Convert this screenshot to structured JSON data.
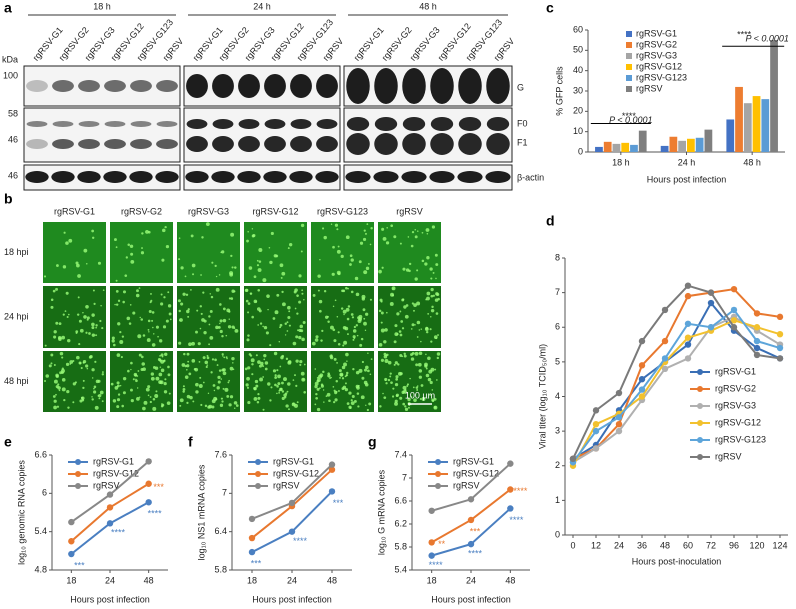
{
  "panel_labels": [
    "a",
    "b",
    "c",
    "d",
    "e",
    "f",
    "g"
  ],
  "blot": {
    "timepoints": [
      "18 h",
      "24 h",
      "48 h"
    ],
    "lanes": [
      "rgRSV-G1",
      "rgRSV-G2",
      "rgRSV-G3",
      "rgRSV-G12",
      "rgRSV-G123",
      "rgRSV"
    ],
    "unit": "kDa",
    "markers": [
      "100",
      "58",
      "46",
      "46"
    ],
    "bands": [
      "G",
      "F0",
      "F1",
      "β-actin"
    ]
  },
  "microscopy": {
    "columns": [
      "rgRSV-G1",
      "rgRSV-G2",
      "rgRSV-G3",
      "rgRSV-G12",
      "rgRSV-G123",
      "rgRSV"
    ],
    "rows": [
      "18 hpi",
      "24 hpi",
      "48 hpi"
    ],
    "scale_bar": "100 µm"
  },
  "chart_data": [
    {
      "type": "bar",
      "categories": [
        "18 h",
        "24 h",
        "48 h"
      ],
      "ylabel": "% GFP cells",
      "xlabel": "Hours post infection",
      "ylim": [
        0,
        60
      ],
      "yticks": [
        0,
        10,
        20,
        30,
        40,
        50,
        60
      ],
      "annotations": [
        "****",
        "P < 0.0001",
        "****",
        "P < 0.0001"
      ],
      "series": [
        {
          "name": "rgRSV-G1",
          "color": "#4472c4",
          "values": [
            2.5,
            3,
            16
          ]
        },
        {
          "name": "rgRSV-G2",
          "color": "#ed7d31",
          "values": [
            5,
            7.5,
            32
          ]
        },
        {
          "name": "rgRSV-G3",
          "color": "#a5a5a5",
          "values": [
            4,
            5.5,
            24
          ]
        },
        {
          "name": "rgRSV-G12",
          "color": "#ffc000",
          "values": [
            4.5,
            6.5,
            27.5
          ]
        },
        {
          "name": "rgRSV-G123",
          "color": "#5b9bd5",
          "values": [
            3.5,
            7,
            26
          ]
        },
        {
          "name": "rgRSV",
          "color": "#7f7f7f",
          "values": [
            10.5,
            11,
            55
          ]
        }
      ]
    },
    {
      "type": "line",
      "categories": [
        "0",
        "12",
        "24",
        "36",
        "48",
        "60",
        "72",
        "96",
        "120",
        "124"
      ],
      "ylabel": "Viral titer (log₁₀ TCID₅₀/ml)",
      "xlabel": "Hours post-inoculation",
      "ylim": [
        0,
        8
      ],
      "yticks": [
        0,
        1,
        2,
        3,
        4,
        5,
        6,
        7,
        8
      ],
      "legend": "lower right",
      "series": [
        {
          "name": "rgRSV-G1",
          "color": "#3a6fb5",
          "values": [
            2.2,
            2.6,
            3.6,
            4.5,
            5.0,
            5.5,
            6.7,
            5.9,
            5.4,
            5.1
          ]
        },
        {
          "name": "rgRSV-G2",
          "color": "#e8782f",
          "values": [
            2.2,
            2.5,
            3.2,
            4.9,
            5.6,
            6.9,
            7.0,
            7.1,
            6.4,
            6.3
          ]
        },
        {
          "name": "rgRSV-G3",
          "color": "#b0b0b0",
          "values": [
            2.1,
            2.5,
            3.0,
            3.9,
            4.8,
            5.1,
            6.0,
            6.3,
            5.9,
            5.5
          ]
        },
        {
          "name": "rgRSV-G12",
          "color": "#f2c12e",
          "values": [
            2.0,
            3.2,
            3.5,
            4.0,
            5.0,
            5.7,
            5.9,
            6.2,
            6.0,
            5.8
          ]
        },
        {
          "name": "rgRSV-G123",
          "color": "#5da5da",
          "values": [
            2.1,
            3.0,
            3.4,
            4.2,
            5.1,
            6.1,
            6.0,
            6.5,
            5.6,
            5.4
          ]
        },
        {
          "name": "rgRSV",
          "color": "#7a7a7a",
          "values": [
            2.2,
            3.6,
            4.1,
            5.6,
            6.5,
            7.2,
            7.0,
            6.0,
            5.2,
            5.1
          ]
        }
      ]
    },
    {
      "type": "line",
      "categories": [
        "18",
        "24",
        "48"
      ],
      "ylabel": "log₁₀ genomic RNA copies",
      "xlabel": "Hours post infection",
      "ylim": [
        4.8,
        6.6
      ],
      "yticks": [
        4.8,
        5.4,
        6,
        6.6
      ],
      "legend": "upper left",
      "annotations": [
        "***",
        "****",
        "****",
        "***"
      ],
      "series": [
        {
          "name": "rgRSV-G1",
          "color": "#4a7fc1",
          "values": [
            5.05,
            5.53,
            5.86
          ]
        },
        {
          "name": "rgRSV-G12",
          "color": "#e8782f",
          "values": [
            5.25,
            5.78,
            6.15
          ]
        },
        {
          "name": "rgRSV",
          "color": "#888888",
          "values": [
            5.55,
            5.98,
            6.5
          ]
        }
      ]
    },
    {
      "type": "line",
      "categories": [
        "18",
        "24",
        "48"
      ],
      "ylabel": "log₁₀ NS1 mRNA copies",
      "xlabel": "Hours post infection",
      "ylim": [
        5.8,
        7.6
      ],
      "yticks": [
        5.8,
        6.4,
        7,
        7.6
      ],
      "legend": "upper left",
      "annotations": [
        "***",
        "****",
        "***"
      ],
      "series": [
        {
          "name": "rgRSV-G1",
          "color": "#4a7fc1",
          "values": [
            6.08,
            6.4,
            7.03
          ]
        },
        {
          "name": "rgRSV-G12",
          "color": "#e8782f",
          "values": [
            6.3,
            6.8,
            7.37
          ]
        },
        {
          "name": "rgRSV",
          "color": "#888888",
          "values": [
            6.6,
            6.85,
            7.45
          ]
        }
      ]
    },
    {
      "type": "line",
      "categories": [
        "18",
        "24",
        "48"
      ],
      "ylabel": "log₁₀ G mRNA copies",
      "xlabel": "Hours post infection",
      "ylim": [
        5.4,
        7.4
      ],
      "yticks": [
        5.4,
        5.8,
        6.2,
        6.6,
        7,
        7.4
      ],
      "legend": "upper left",
      "annotations": [
        "**",
        "****",
        "***",
        "****",
        "****",
        "****"
      ],
      "series": [
        {
          "name": "rgRSV-G1",
          "color": "#4a7fc1",
          "values": [
            5.65,
            5.85,
            6.47
          ]
        },
        {
          "name": "rgRSV-G12",
          "color": "#e8782f",
          "values": [
            5.88,
            6.27,
            6.8
          ]
        },
        {
          "name": "rgRSV",
          "color": "#888888",
          "values": [
            6.43,
            6.63,
            7.25
          ]
        }
      ]
    }
  ]
}
